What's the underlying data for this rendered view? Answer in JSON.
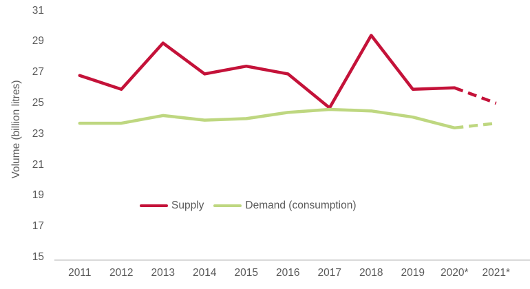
{
  "chart_data": {
    "type": "line",
    "title": "",
    "ylabel": "Volume (billion litres)",
    "xlabel": "",
    "ylim": [
      15,
      31
    ],
    "yticks": [
      31,
      29,
      27,
      25,
      23,
      21,
      19,
      17,
      15
    ],
    "grid": false,
    "legend_position": "inside-bottom-center",
    "categories": [
      "2011",
      "2012",
      "2013",
      "2014",
      "2015",
      "2016",
      "2017",
      "2018",
      "2019",
      "2020*",
      "2021*"
    ],
    "series": [
      {
        "name": "Supply",
        "color": "#C41239",
        "values": [
          26.8,
          25.9,
          28.9,
          26.9,
          27.4,
          26.9,
          24.7,
          29.4,
          25.9,
          26.0,
          25.0
        ],
        "dashed_from_index": 9
      },
      {
        "name": "Demand (consumption)",
        "color": "#BED780",
        "values": [
          23.7,
          23.7,
          24.2,
          23.9,
          24.0,
          24.4,
          24.6,
          24.5,
          24.1,
          23.4,
          23.7
        ],
        "dashed_from_index": 9
      }
    ],
    "text_color": "#595959",
    "axis_line_color": "#D9D9D9"
  }
}
